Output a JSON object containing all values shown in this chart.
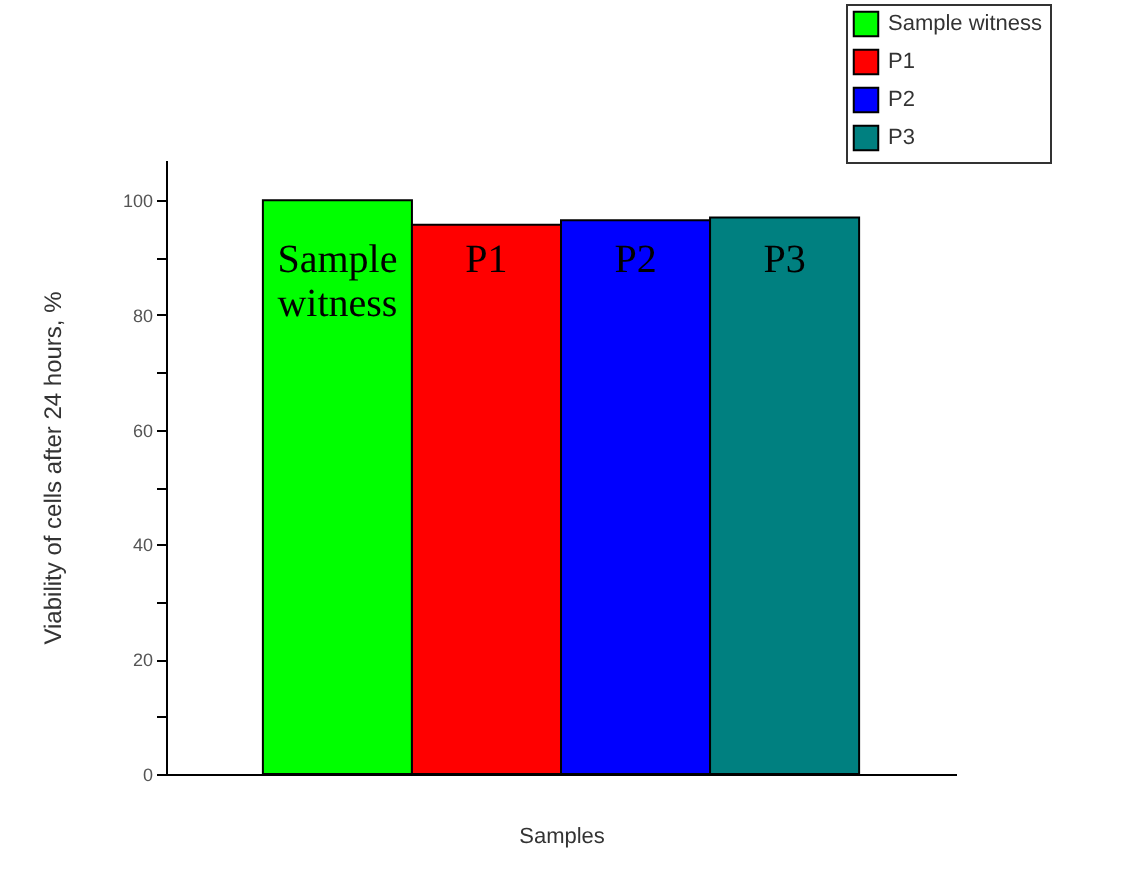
{
  "chart_data": {
    "type": "bar",
    "xlabel": "Samples",
    "ylabel": "Viability of cells after 24 hours, %",
    "categories": [
      null
    ],
    "series": [
      {
        "name": "Sample witness",
        "color": "#00ff00",
        "values": [
          100
        ]
      },
      {
        "name": "P1",
        "color": "#ff0000",
        "values": [
          95.7
        ]
      },
      {
        "name": "P2",
        "color": "#0000ff",
        "values": [
          96.5
        ]
      },
      {
        "name": "P3",
        "color": "#008080",
        "values": [
          97
        ]
      }
    ],
    "ylim": [
      0,
      107
    ],
    "yticks": [
      0,
      {
        "value": 10,
        "label": null
      },
      20,
      {
        "value": 30,
        "label": null
      },
      40,
      {
        "value": 50,
        "label": null
      },
      60,
      {
        "value": 70,
        "label": null
      },
      80,
      {
        "value": 90,
        "label": null
      },
      100
    ],
    "annotations": [
      "Sample witness",
      "P1",
      "P2",
      "P3"
    ],
    "grid": false,
    "legend": "top right",
    "tick_labels": "y"
  }
}
